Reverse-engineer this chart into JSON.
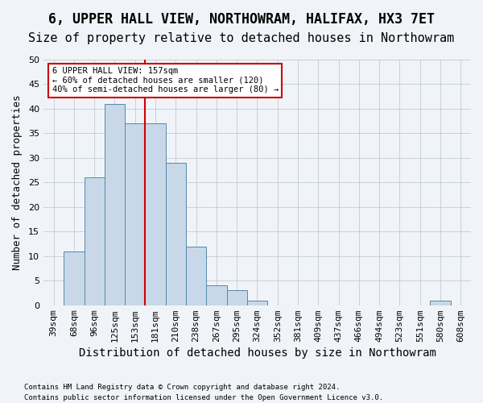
{
  "title1": "6, UPPER HALL VIEW, NORTHOWRAM, HALIFAX, HX3 7ET",
  "title2": "Size of property relative to detached houses in Northowram",
  "xlabel": "Distribution of detached houses by size in Northowram",
  "ylabel": "Number of detached properties",
  "categories": [
    "39sqm",
    "68sqm",
    "96sqm",
    "125sqm",
    "153sqm",
    "181sqm",
    "210sqm",
    "238sqm",
    "267sqm",
    "295sqm",
    "324sqm",
    "352sqm",
    "381sqm",
    "409sqm",
    "437sqm",
    "466sqm",
    "494sqm",
    "523sqm",
    "551sqm",
    "580sqm",
    "608sqm"
  ],
  "values": [
    0,
    11,
    26,
    41,
    37,
    37,
    29,
    12,
    4,
    3,
    1,
    0,
    0,
    0,
    0,
    0,
    0,
    0,
    0,
    1,
    0
  ],
  "bar_color": "#c8d8e8",
  "bar_edge_color": "#5588aa",
  "vline_x": 4.5,
  "vline_color": "#cc0000",
  "ylim": [
    0,
    50
  ],
  "yticks": [
    0,
    5,
    10,
    15,
    20,
    25,
    30,
    35,
    40,
    45,
    50
  ],
  "annotation_text": "6 UPPER HALL VIEW: 157sqm\n← 60% of detached houses are smaller (120)\n40% of semi-detached houses are larger (80) →",
  "annotation_box_color": "#ffffff",
  "annotation_box_edge": "#cc0000",
  "footnote1": "Contains HM Land Registry data © Crown copyright and database right 2024.",
  "footnote2": "Contains public sector information licensed under the Open Government Licence v3.0.",
  "background_color": "#f0f4f8",
  "title1_fontsize": 12,
  "title2_fontsize": 11,
  "xlabel_fontsize": 10,
  "ylabel_fontsize": 9,
  "tick_fontsize": 8
}
